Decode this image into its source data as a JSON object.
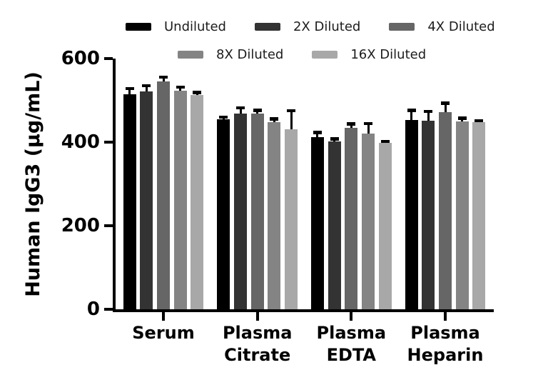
{
  "chart_data": {
    "type": "bar",
    "title": "",
    "xlabel": "",
    "ylabel": "Human IgG3 (µg/mL)",
    "ylim": [
      0,
      600
    ],
    "yticks": [
      0,
      200,
      400,
      600
    ],
    "grid": false,
    "error_bars": true,
    "legend_position": "top",
    "legend_rows": [
      [
        0,
        1,
        2
      ],
      [
        3,
        4
      ]
    ],
    "categories": [
      "Serum",
      "Plasma Citrate",
      "Plasma EDTA",
      "Plasma Heparin"
    ],
    "series": [
      {
        "name": "Undiluted",
        "color": "#000000",
        "values": [
          515,
          455,
          412,
          453
        ],
        "errors": [
          15,
          7,
          13,
          25
        ]
      },
      {
        "name": "2X Diluted",
        "color": "#333333",
        "values": [
          522,
          468,
          402,
          451
        ],
        "errors": [
          15,
          16,
          8,
          25
        ]
      },
      {
        "name": "4X Diluted",
        "color": "#666666",
        "values": [
          545,
          469,
          434,
          472
        ],
        "errors": [
          13,
          9,
          12,
          23
        ]
      },
      {
        "name": "8X Diluted",
        "color": "#848484",
        "values": [
          523,
          448,
          421,
          449
        ],
        "errors": [
          11,
          10,
          26,
          10
        ]
      },
      {
        "name": "16X Diluted",
        "color": "#a8a8a8",
        "values": [
          512,
          430,
          399,
          448
        ],
        "errors": [
          9,
          47,
          5,
          5
        ]
      }
    ],
    "colors": {
      "axis": "#000000",
      "error_bar": "#000000",
      "background": "#ffffff"
    }
  }
}
